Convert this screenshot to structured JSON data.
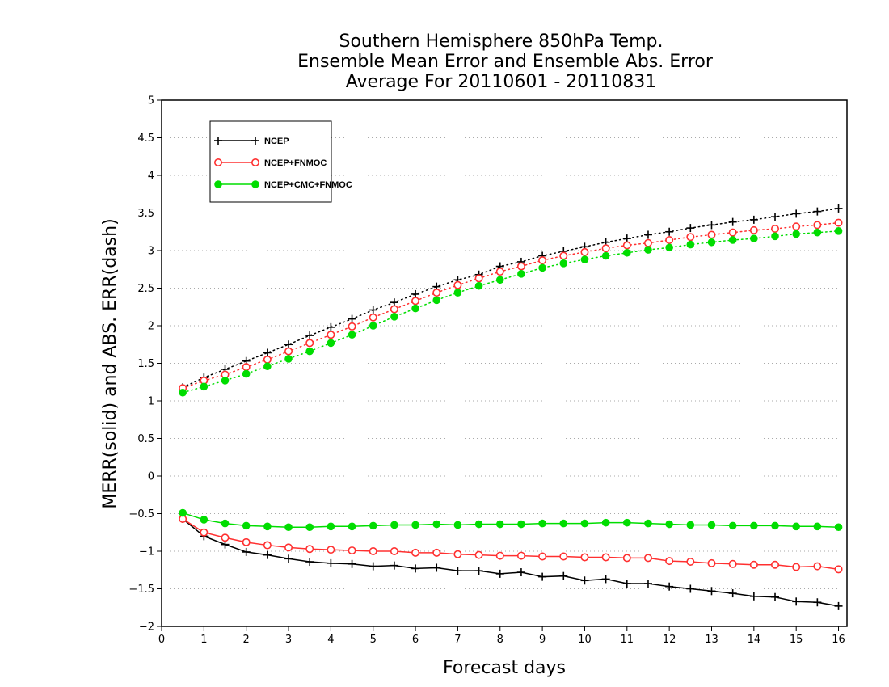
{
  "chart_data": {
    "type": "line",
    "title": [
      "Southern Hemisphere 850hPa Temp.",
      "Ensemble Mean Error and Ensemble Abs. Error",
      "Average For 20110601 - 20110831"
    ],
    "xlabel": "Forecast days",
    "ylabel": "MERR(solid) and ABS. ERR(dash)",
    "xlim": [
      0,
      16.2
    ],
    "ylim": [
      -2,
      5
    ],
    "xticks": [
      0,
      1,
      2,
      3,
      4,
      5,
      6,
      7,
      8,
      9,
      10,
      11,
      12,
      13,
      14,
      15,
      16
    ],
    "xtick_labels": [
      "0",
      "1",
      "2",
      "3",
      "4",
      "5",
      "6",
      "7",
      "8",
      "9",
      "10",
      "11",
      "12",
      "13",
      "14",
      "15",
      "16"
    ],
    "yticks": [
      -2,
      -1.5,
      -1,
      -0.5,
      0,
      0.5,
      1,
      1.5,
      2,
      2.5,
      3,
      3.5,
      4,
      4.5,
      5
    ],
    "ytick_labels": [
      "−2",
      "−1.5",
      "−1",
      "−0.5",
      "0",
      "0.5",
      "1",
      "1.5",
      "2",
      "2.5",
      "3",
      "3.5",
      "4",
      "4.5",
      "5"
    ],
    "grid": "horizontal-dotted",
    "legend_position": "top-left",
    "x": [
      0.5,
      1,
      1.5,
      2,
      2.5,
      3,
      3.5,
      4,
      4.5,
      5,
      5.5,
      6,
      6.5,
      7,
      7.5,
      8,
      8.5,
      9,
      9.5,
      10,
      10.5,
      11,
      11.5,
      12,
      12.5,
      13,
      13.5,
      14,
      14.5,
      15,
      15.5,
      16
    ],
    "series": [
      {
        "name": "NCEP",
        "color": "#000000",
        "marker": "plus",
        "abs_err": [
          1.18,
          1.31,
          1.42,
          1.53,
          1.64,
          1.75,
          1.87,
          1.98,
          2.09,
          2.21,
          2.31,
          2.42,
          2.52,
          2.61,
          2.68,
          2.79,
          2.85,
          2.93,
          2.99,
          3.05,
          3.11,
          3.16,
          3.21,
          3.25,
          3.3,
          3.34,
          3.38,
          3.41,
          3.45,
          3.49,
          3.52,
          3.56
        ],
        "mean_err": [
          -0.57,
          -0.8,
          -0.91,
          -1.01,
          -1.05,
          -1.1,
          -1.14,
          -1.16,
          -1.17,
          -1.2,
          -1.19,
          -1.23,
          -1.22,
          -1.26,
          -1.26,
          -1.3,
          -1.28,
          -1.34,
          -1.33,
          -1.39,
          -1.37,
          -1.43,
          -1.43,
          -1.47,
          -1.5,
          -1.53,
          -1.56,
          -1.6,
          -1.61,
          -1.67,
          -1.68,
          -1.73
        ]
      },
      {
        "name": "NCEP+FNMOC",
        "color": "#ff3030",
        "marker": "circle-open",
        "abs_err": [
          1.17,
          1.27,
          1.35,
          1.45,
          1.55,
          1.66,
          1.77,
          1.88,
          1.99,
          2.11,
          2.22,
          2.33,
          2.44,
          2.54,
          2.63,
          2.72,
          2.79,
          2.87,
          2.93,
          2.98,
          3.03,
          3.07,
          3.1,
          3.14,
          3.18,
          3.21,
          3.24,
          3.27,
          3.29,
          3.32,
          3.34,
          3.37
        ],
        "mean_err": [
          -0.57,
          -0.75,
          -0.82,
          -0.88,
          -0.92,
          -0.95,
          -0.97,
          -0.98,
          -0.99,
          -1.0,
          -1.0,
          -1.02,
          -1.02,
          -1.04,
          -1.05,
          -1.06,
          -1.06,
          -1.07,
          -1.07,
          -1.08,
          -1.08,
          -1.09,
          -1.09,
          -1.13,
          -1.14,
          -1.16,
          -1.17,
          -1.18,
          -1.18,
          -1.21,
          -1.2,
          -1.24
        ]
      },
      {
        "name": "NCEP+CMC+FNMOC",
        "color": "#00dd00",
        "marker": "circle-filled",
        "abs_err": [
          1.11,
          1.19,
          1.27,
          1.36,
          1.46,
          1.56,
          1.66,
          1.77,
          1.88,
          2.0,
          2.12,
          2.23,
          2.34,
          2.44,
          2.53,
          2.61,
          2.69,
          2.77,
          2.83,
          2.88,
          2.93,
          2.97,
          3.01,
          3.04,
          3.08,
          3.11,
          3.14,
          3.16,
          3.19,
          3.22,
          3.24,
          3.26
        ],
        "mean_err": [
          -0.49,
          -0.58,
          -0.63,
          -0.66,
          -0.67,
          -0.68,
          -0.68,
          -0.67,
          -0.67,
          -0.66,
          -0.65,
          -0.65,
          -0.64,
          -0.65,
          -0.64,
          -0.64,
          -0.64,
          -0.63,
          -0.63,
          -0.63,
          -0.62,
          -0.62,
          -0.63,
          -0.64,
          -0.65,
          -0.65,
          -0.66,
          -0.66,
          -0.66,
          -0.67,
          -0.67,
          -0.68
        ]
      }
    ]
  }
}
